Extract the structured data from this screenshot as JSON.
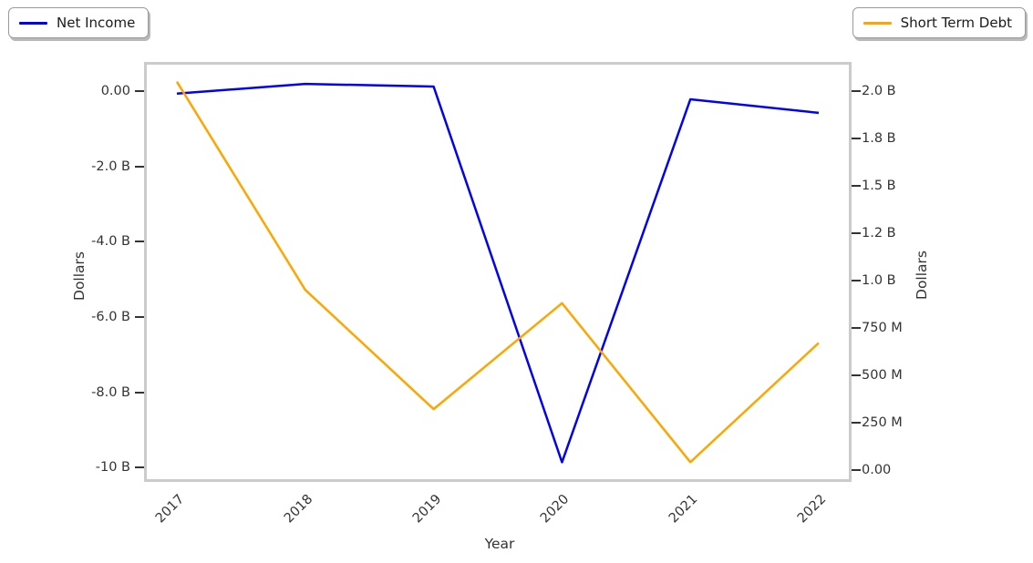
{
  "figure": {
    "background": "#ffffff",
    "frame_color": "#cbcbcb",
    "text_color": "#333333"
  },
  "legend_left": {
    "label": "Net Income",
    "color": "#0000f5"
  },
  "legend_right": {
    "label": "Short Term Debt",
    "color": "#ffa500"
  },
  "chart_data": {
    "type": "line",
    "x": [
      "2017",
      "2018",
      "2019",
      "2020",
      "2021",
      "2022"
    ],
    "xlabel": "Year",
    "ylabel_left": "Dollars",
    "ylabel_right": "Dollars",
    "grid": false,
    "legend_position": "outside-top-left and outside-top-right",
    "series": [
      {
        "name": "Net Income",
        "axis": "left",
        "color": "#0000f5",
        "units": "billions of dollars",
        "values_billions": [
          -0.07,
          0.19,
          0.12,
          -9.86,
          -0.22,
          -0.58
        ]
      },
      {
        "name": "Short Term Debt",
        "axis": "right",
        "color": "#ffa500",
        "units": "billions of dollars",
        "values_billions": [
          2.05,
          0.95,
          0.32,
          0.88,
          0.04,
          0.67
        ]
      }
    ],
    "left_axis": {
      "range_billions": [
        -10.31,
        0.7
      ],
      "ticks": [
        {
          "value": 0,
          "label": "0.00"
        },
        {
          "value": -2,
          "label": "-2.0 B"
        },
        {
          "value": -4,
          "label": "-4.0 B"
        },
        {
          "value": -6,
          "label": "-6.0 B"
        },
        {
          "value": -8,
          "label": "-8.0 B"
        },
        {
          "value": -10,
          "label": "-10 B"
        }
      ]
    },
    "right_axis": {
      "range_billions": [
        -0.05,
        2.14
      ],
      "ticks": [
        {
          "value": 2.0,
          "label": "2.0 B"
        },
        {
          "value": 1.75,
          "label": "1.8 B"
        },
        {
          "value": 1.5,
          "label": "1.5 B"
        },
        {
          "value": 1.25,
          "label": "1.2 B"
        },
        {
          "value": 1.0,
          "label": "1.0 B"
        },
        {
          "value": 0.75,
          "label": "750 M"
        },
        {
          "value": 0.5,
          "label": "500 M"
        },
        {
          "value": 0.25,
          "label": "250 M"
        },
        {
          "value": 0,
          "label": "0.00"
        }
      ]
    }
  }
}
